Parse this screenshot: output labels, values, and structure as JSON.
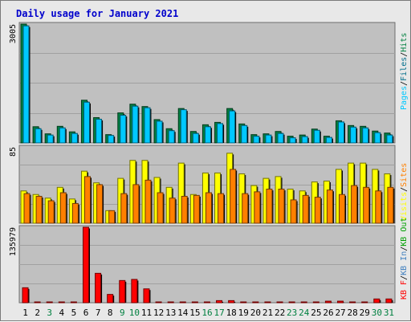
{
  "title": "Daily usage for January 2021",
  "colors": {
    "background": "#e8e8e8",
    "plot": "#c0c0c0",
    "grid": "#a0a0a0",
    "title": "#0000cc",
    "pages": "#00c8ff",
    "pages_dark": "#006e8c",
    "hits": "#008040",
    "sites": "#ff8000",
    "visits": "#ffff00",
    "kbytes": "#ff0000",
    "kbin": "#3f7fbf",
    "kbout": "#00a000",
    "weekday": "#000000",
    "weekend": "#008040",
    "separator": "#000000"
  },
  "chart_data": [
    {
      "type": "bar",
      "panel": "top",
      "ymax_label": "3005",
      "ylim": [
        0,
        3005
      ],
      "categories": [
        "1",
        "2",
        "3",
        "4",
        "5",
        "6",
        "7",
        "8",
        "9",
        "10",
        "11",
        "12",
        "13",
        "14",
        "15",
        "16",
        "17",
        "18",
        "19",
        "20",
        "21",
        "22",
        "23",
        "24",
        "25",
        "26",
        "27",
        "28",
        "29",
        "30",
        "31"
      ],
      "legend": [
        "Pages",
        "/",
        "Files",
        "/",
        "Hits"
      ],
      "series": [
        {
          "name": "Hits",
          "color": "#008040",
          "values": [
            3005,
            410,
            230,
            420,
            280,
            1080,
            640,
            210,
            760,
            980,
            920,
            590,
            360,
            870,
            290,
            460,
            520,
            870,
            480,
            210,
            230,
            290,
            170,
            200,
            350,
            170,
            560,
            440,
            420,
            300,
            250
          ]
        },
        {
          "name": "Files",
          "color": "#00c8ff",
          "values": [
            2960,
            360,
            200,
            380,
            240,
            1030,
            600,
            190,
            700,
            930,
            890,
            550,
            310,
            840,
            240,
            410,
            490,
            810,
            440,
            170,
            200,
            240,
            130,
            160,
            320,
            140,
            530,
            400,
            380,
            260,
            200
          ]
        },
        {
          "name": "Pages",
          "color": "#00c8ff",
          "values": [
            2900,
            340,
            180,
            360,
            220,
            1000,
            580,
            170,
            680,
            900,
            860,
            520,
            290,
            810,
            220,
            390,
            470,
            780,
            420,
            150,
            180,
            220,
            110,
            140,
            300,
            120,
            510,
            380,
            360,
            240,
            180
          ]
        }
      ]
    },
    {
      "type": "bar",
      "panel": "middle",
      "ymax_label": "85",
      "ylim": [
        0,
        85
      ],
      "categories": [
        "1",
        "2",
        "3",
        "4",
        "5",
        "6",
        "7",
        "8",
        "9",
        "10",
        "11",
        "12",
        "13",
        "14",
        "15",
        "16",
        "17",
        "18",
        "19",
        "20",
        "21",
        "22",
        "23",
        "24",
        "25",
        "26",
        "27",
        "28",
        "29",
        "30",
        "31"
      ],
      "legend": [
        "Visits",
        "/",
        "Sites"
      ],
      "series": [
        {
          "name": "Visits",
          "color": "#ffff00",
          "values": [
            36,
            32,
            28,
            40,
            27,
            58,
            45,
            14,
            50,
            70,
            70,
            51,
            40,
            67,
            32,
            56,
            56,
            78,
            55,
            42,
            50,
            52,
            38,
            36,
            46,
            47,
            60,
            67,
            67,
            60,
            55
          ]
        },
        {
          "name": "Sites",
          "color": "#ff8000",
          "values": [
            33,
            30,
            25,
            34,
            22,
            52,
            43,
            14,
            33,
            43,
            48,
            34,
            28,
            30,
            31,
            34,
            33,
            60,
            33,
            35,
            38,
            38,
            26,
            31,
            29,
            37,
            32,
            42,
            40,
            36,
            40
          ]
        }
      ]
    },
    {
      "type": "bar",
      "panel": "bottom",
      "ymax_label": "135979",
      "ylim": [
        0,
        135979
      ],
      "categories": [
        "1",
        "2",
        "3",
        "4",
        "5",
        "6",
        "7",
        "8",
        "9",
        "10",
        "11",
        "12",
        "13",
        "14",
        "15",
        "16",
        "17",
        "18",
        "19",
        "20",
        "21",
        "22",
        "23",
        "24",
        "25",
        "26",
        "27",
        "28",
        "29",
        "30",
        "31"
      ],
      "legend": [
        "KB F",
        "/",
        "KB In",
        "/",
        "KB Out"
      ],
      "series": [
        {
          "name": "KB F",
          "color": "#ff0000",
          "values": [
            27000,
            1200,
            1200,
            1200,
            1200,
            135979,
            53000,
            15000,
            40000,
            42000,
            25000,
            1200,
            1200,
            1200,
            1200,
            1200,
            3800,
            3800,
            1200,
            1200,
            1200,
            1200,
            1200,
            1200,
            1200,
            2800,
            2800,
            1200,
            1200,
            6800,
            6800
          ]
        }
      ]
    }
  ],
  "x_axis": {
    "labels": [
      "1",
      "2",
      "3",
      "4",
      "5",
      "6",
      "7",
      "8",
      "9",
      "10",
      "11",
      "12",
      "13",
      "14",
      "15",
      "16",
      "17",
      "18",
      "19",
      "20",
      "21",
      "22",
      "23",
      "24",
      "25",
      "26",
      "27",
      "28",
      "29",
      "30",
      "31"
    ],
    "weekend": [
      false,
      false,
      true,
      false,
      false,
      false,
      false,
      false,
      true,
      true,
      false,
      false,
      false,
      false,
      false,
      true,
      true,
      false,
      false,
      false,
      false,
      false,
      true,
      true,
      false,
      false,
      false,
      false,
      false,
      true,
      true
    ]
  }
}
